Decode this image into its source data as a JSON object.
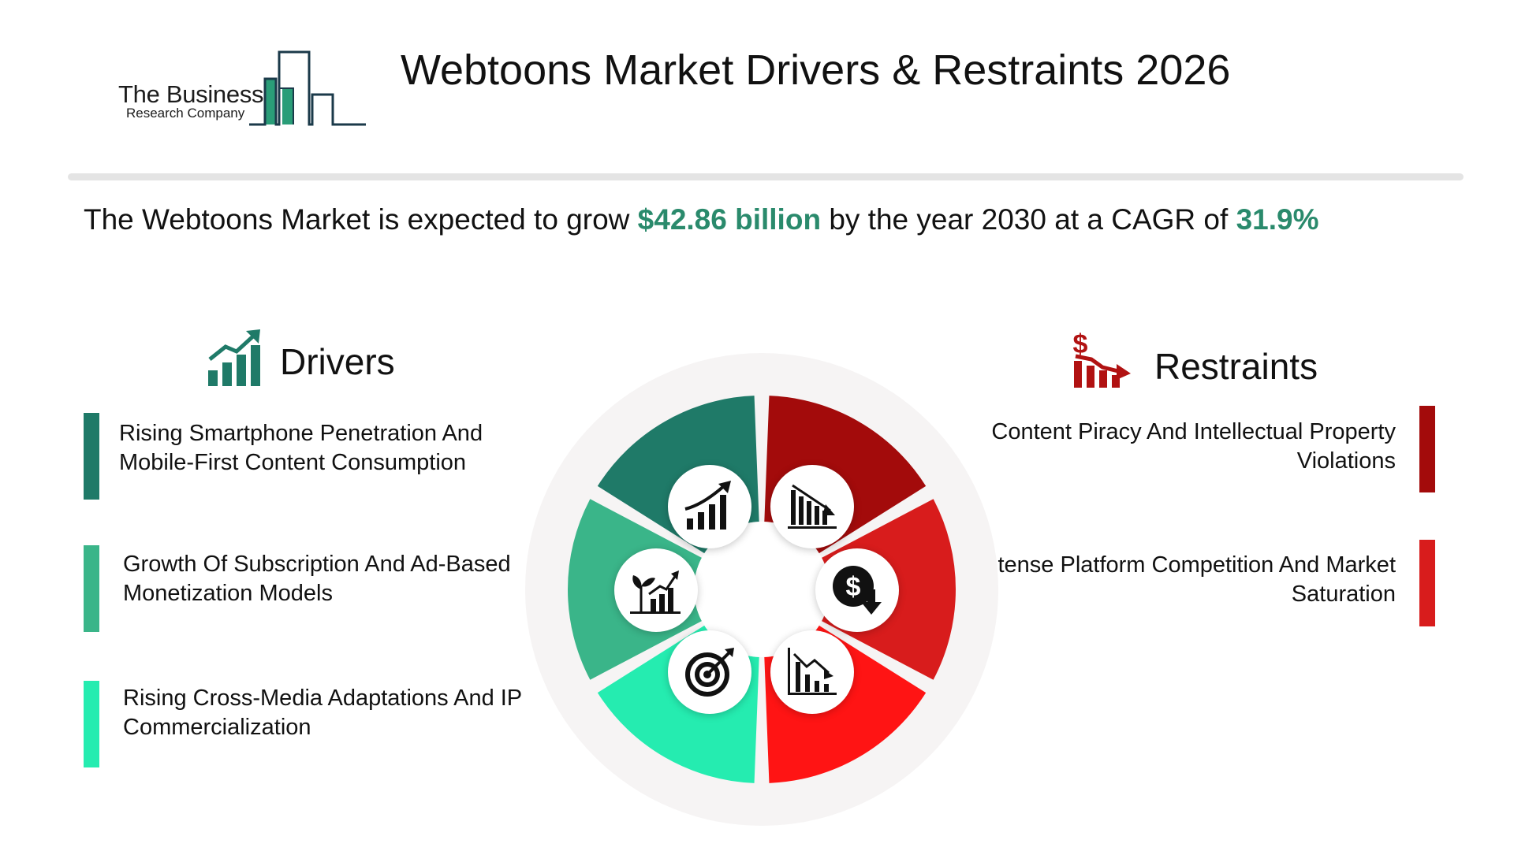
{
  "logo": {
    "line1": "The Business",
    "line2": "Research Company"
  },
  "title": "Webtoons Market Drivers & Restraints 2026",
  "headline": {
    "prefix": "The Webtoons Market is expected to grow ",
    "value": "$42.86 billion",
    "middle": " by the year 2030 at a CAGR of ",
    "cagr": "31.9%"
  },
  "drivers": {
    "title": "Drivers",
    "icon": "growth-chart-icon",
    "items": [
      {
        "text": "Rising Smartphone Penetration And Mobile-First Content Consumption",
        "color": "#1f7a68"
      },
      {
        "text": "Growth Of Subscription And Ad-Based Monetization Models",
        "color": "#3ab589"
      },
      {
        "text": "Rising Cross-Media Adaptations And IP Commercialization",
        "color": "#25ecb0"
      }
    ]
  },
  "restraints": {
    "title": "Restraints",
    "icon": "dollar-decline-icon",
    "items": [
      {
        "text": "Content Piracy And Intellectual Property Violations",
        "color": "#a30b0b"
      },
      {
        "text": "Intense Platform Competition And Market Saturation",
        "color": "#d81c1c"
      }
    ]
  },
  "wheel": {
    "segment_colors": [
      "#a30b0b",
      "#d81c1c",
      "#ff1414",
      "#25ecb0",
      "#3ab589",
      "#1f7a68"
    ],
    "icons": [
      "rising-bar-chart-icon",
      "declining-bar-chart-icon",
      "dollar-down-icon",
      "declining-trend-chart-icon",
      "target-icon",
      "plant-growth-chart-icon"
    ]
  }
}
